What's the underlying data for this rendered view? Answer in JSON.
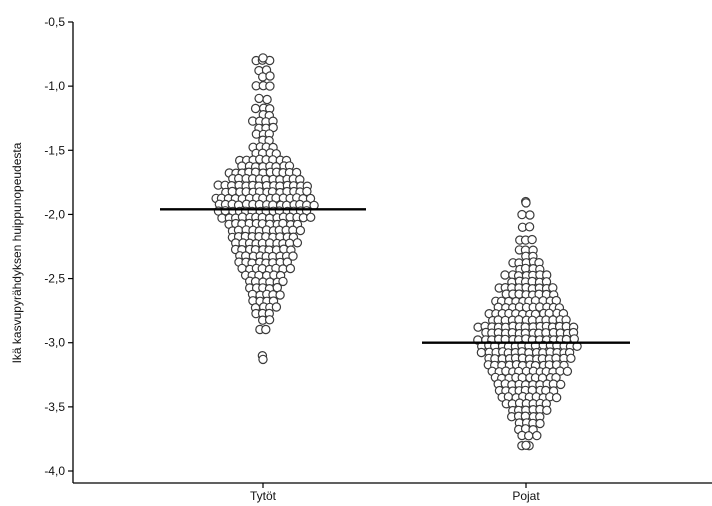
{
  "chart_data": {
    "type": "scatter",
    "subtype": "beeswarm-dot-plot",
    "title": "",
    "xlabel": "",
    "ylabel": "Ikä kasvupyrähdyksen huippunopeudesta",
    "ylim": [
      -4.05,
      -0.4
    ],
    "y_ticks": [
      -0.5,
      -1.0,
      -1.5,
      -2.0,
      -2.5,
      -3.0,
      -3.5,
      -4.0
    ],
    "y_tick_labels": [
      "-0,5",
      "-1,0",
      "-1,5",
      "-2,0",
      "-2,5",
      "-3,0",
      "-3,5",
      "-4,0"
    ],
    "categories": [
      "Tytöt",
      "Pojat"
    ],
    "grid": false,
    "marker": "open circle",
    "series": [
      {
        "category": "Tytöt",
        "mean": -1.96,
        "min": -3.13,
        "max": -0.78,
        "bins": [
          [
            -0.8,
            3
          ],
          [
            -0.9,
            4
          ],
          [
            -1.0,
            3
          ],
          [
            -1.1,
            2
          ],
          [
            -1.2,
            5
          ],
          [
            -1.3,
            7
          ],
          [
            -1.4,
            5
          ],
          [
            -1.5,
            8
          ],
          [
            -1.6,
            16
          ],
          [
            -1.7,
            22
          ],
          [
            -1.8,
            27
          ],
          [
            -1.9,
            30
          ],
          [
            -2.0,
            28
          ],
          [
            -2.1,
            22
          ],
          [
            -2.2,
            20
          ],
          [
            -2.3,
            18
          ],
          [
            -2.4,
            16
          ],
          [
            -2.5,
            12
          ],
          [
            -2.6,
            10
          ],
          [
            -2.7,
            8
          ],
          [
            -2.8,
            5
          ],
          [
            -2.9,
            2
          ],
          [
            -3.1,
            1
          ]
        ]
      },
      {
        "category": "Pojat",
        "mean": -3.0,
        "min": -3.8,
        "max": -1.91,
        "bins": [
          [
            -1.9,
            1
          ],
          [
            -2.0,
            2
          ],
          [
            -2.1,
            2
          ],
          [
            -2.2,
            3
          ],
          [
            -2.3,
            5
          ],
          [
            -2.4,
            9
          ],
          [
            -2.5,
            13
          ],
          [
            -2.6,
            17
          ],
          [
            -2.7,
            20
          ],
          [
            -2.8,
            24
          ],
          [
            -2.9,
            29
          ],
          [
            -3.0,
            30
          ],
          [
            -3.1,
            27
          ],
          [
            -3.2,
            24
          ],
          [
            -3.3,
            20
          ],
          [
            -3.4,
            18
          ],
          [
            -3.5,
            13
          ],
          [
            -3.6,
            9
          ],
          [
            -3.7,
            6
          ],
          [
            -3.8,
            2
          ]
        ]
      }
    ]
  }
}
